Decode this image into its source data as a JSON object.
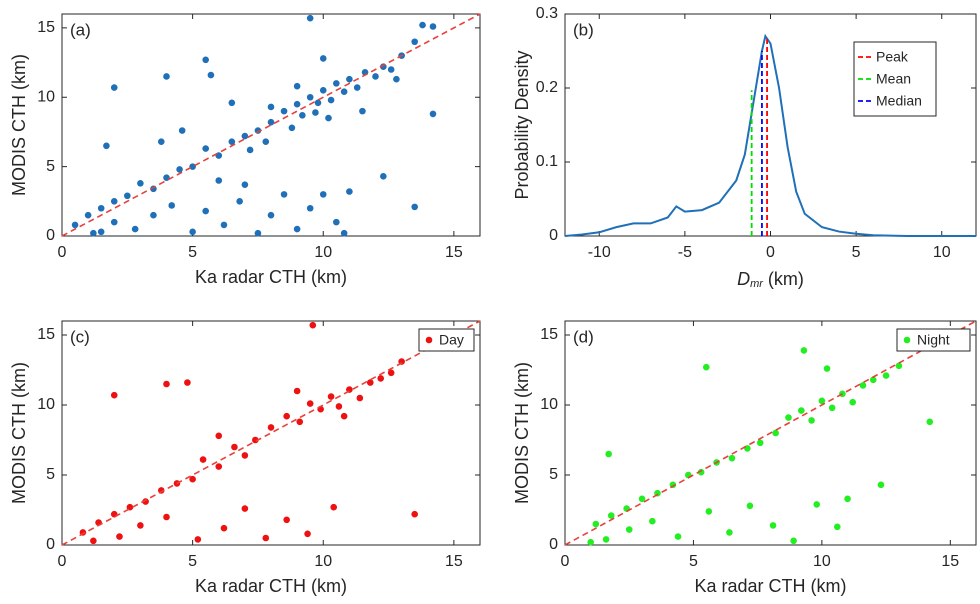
{
  "chart_data": [
    {
      "type": "scatter",
      "label": "(a)",
      "xlabel": "Ka radar CTH (km)",
      "ylabel": "MODIS CTH (km)",
      "xlim": [
        0,
        16
      ],
      "ylim": [
        0,
        16
      ],
      "xticks": [
        0,
        5,
        10,
        15
      ],
      "yticks": [
        0,
        5,
        10,
        15
      ],
      "diagonal_color": "#e8413b",
      "series": [
        {
          "color": "#1f70b8",
          "x": [
            8,
            8.5,
            9,
            9.2,
            9.5,
            9.8,
            10,
            10.3,
            10.5,
            10.8,
            11,
            11.3,
            11.6,
            12,
            12.3,
            12.6,
            13,
            13.5,
            13.8,
            14.2,
            9.5,
            8.8,
            9.7,
            10.2,
            7.5,
            7,
            7.2,
            6.5,
            6,
            5.5,
            5,
            4.5,
            4,
            3.5,
            3,
            2.5,
            2,
            1.5,
            1,
            0.5,
            1.2,
            1.5,
            2,
            2.8,
            3.5,
            4.2,
            5,
            5.5,
            6.2,
            6.8,
            7.5,
            8,
            8.5,
            9,
            9.5,
            10,
            10.5,
            10.8,
            11,
            7,
            6,
            4,
            5.5,
            5.7,
            2,
            1.7,
            4.6,
            3.8,
            6.5,
            14.2,
            13.5,
            12.3,
            10,
            11.5,
            9,
            8,
            7.8,
            12.8
          ],
          "y": [
            8.2,
            9,
            9.5,
            8.7,
            10,
            9.6,
            10.5,
            9.8,
            11,
            10.4,
            11.3,
            10.7,
            11.8,
            11.5,
            12.2,
            12,
            13,
            14,
            15.2,
            15.1,
            15.7,
            7.8,
            8.9,
            8.5,
            7.6,
            7.2,
            6.2,
            6.8,
            5.8,
            6.3,
            5,
            4.8,
            4.2,
            3.4,
            3.8,
            2.9,
            2.5,
            2,
            1.5,
            0.8,
            0.2,
            0.3,
            1,
            0.5,
            1.5,
            2.2,
            0.3,
            1.8,
            0.8,
            2.5,
            0.2,
            1.5,
            3,
            0.5,
            2,
            3,
            1,
            0.2,
            3.2,
            3.7,
            4,
            11.5,
            12.7,
            11.6,
            10.7,
            6.5,
            7.6,
            6.8,
            9.6,
            8.8,
            2.1,
            4.3,
            12.8,
            9,
            10.8,
            9.3,
            6.8,
            11.3
          ]
        }
      ]
    },
    {
      "type": "density",
      "label": "(b)",
      "xlabel_symbol": "D",
      "xlabel_subscript": "mr",
      "xlabel_unit": "(km)",
      "ylabel": "Probability Density",
      "xlim": [
        -12,
        12
      ],
      "ylim": [
        0,
        0.3
      ],
      "xticks": [
        -10,
        -5,
        0,
        5,
        10
      ],
      "yticks": [
        0,
        0.1,
        0.2,
        0.3
      ],
      "color": "#1f70b8",
      "x": [
        -12,
        -11,
        -10,
        -9,
        -8,
        -7,
        -6,
        -5.5,
        -5,
        -4,
        -3,
        -2,
        -1.5,
        -1,
        -0.5,
        -0.3,
        0,
        0.5,
        1,
        1.5,
        2,
        3,
        4,
        5,
        6,
        8,
        10,
        12
      ],
      "values": [
        0,
        0.002,
        0.005,
        0.012,
        0.017,
        0.017,
        0.025,
        0.04,
        0.033,
        0.035,
        0.045,
        0.075,
        0.11,
        0.18,
        0.25,
        0.27,
        0.26,
        0.2,
        0.12,
        0.06,
        0.03,
        0.012,
        0.006,
        0.003,
        0.001,
        0,
        0,
        0
      ],
      "legend": "upper right",
      "lines": [
        {
          "name": "Peak",
          "color": "#ff0000",
          "x": -0.2,
          "y": 0.27
        },
        {
          "name": "Mean",
          "color": "#00dd00",
          "x": -1.1,
          "y": 0.197
        },
        {
          "name": "Median",
          "color": "#0000ff",
          "x": -0.5,
          "y": 0.25
        }
      ]
    },
    {
      "type": "scatter",
      "label": "(c)",
      "xlabel": "Ka radar CTH (km)",
      "ylabel": "MODIS CTH (km)",
      "xlim": [
        0,
        16
      ],
      "ylim": [
        0,
        16
      ],
      "xticks": [
        0,
        5,
        10,
        15
      ],
      "yticks": [
        0,
        5,
        10,
        15
      ],
      "diagonal_color": "#e8413b",
      "legend": "upper right",
      "series": [
        {
          "name": "Day",
          "color": "#ee1111",
          "x": [
            8,
            8.6,
            9.1,
            9.5,
            9.9,
            10.3,
            10.6,
            11,
            11.4,
            11.8,
            12.2,
            12.6,
            13,
            9.6,
            7.4,
            7,
            6.6,
            6,
            5.4,
            5,
            4.4,
            3.8,
            3.2,
            2.6,
            2,
            1.4,
            0.8,
            1.2,
            2.2,
            3,
            4,
            5.2,
            6.2,
            7,
            7.8,
            8.6,
            9.4,
            10.4,
            13.5,
            2,
            4,
            4.8,
            6,
            9,
            10.8
          ],
          "y": [
            8.4,
            9.2,
            8.8,
            10.1,
            9.7,
            10.6,
            9.9,
            11.1,
            10.5,
            11.6,
            11.9,
            12.3,
            13.1,
            15.7,
            7.5,
            6.4,
            7,
            5.6,
            6.1,
            4.7,
            4.4,
            3.9,
            3.1,
            2.7,
            2.2,
            1.6,
            0.9,
            0.3,
            0.6,
            1.4,
            2,
            0.4,
            1.2,
            2.6,
            0.5,
            1.8,
            0.8,
            2.7,
            2.2,
            10.7,
            11.5,
            11.6,
            7.8,
            11,
            9.2
          ]
        }
      ]
    },
    {
      "type": "scatter",
      "label": "(d)",
      "xlabel": "Ka radar CTH (km)",
      "ylabel": "MODIS CTH (km)",
      "xlim": [
        0,
        16
      ],
      "ylim": [
        0,
        16
      ],
      "xticks": [
        0,
        5,
        10,
        15
      ],
      "yticks": [
        0,
        5,
        10,
        15
      ],
      "diagonal_color": "#e8413b",
      "legend": "upper right",
      "series": [
        {
          "name": "Night",
          "color": "#22ee22",
          "x": [
            8.2,
            8.7,
            9.2,
            9.6,
            10,
            10.4,
            10.8,
            11.2,
            11.6,
            12,
            12.5,
            13,
            13.8,
            15.5,
            7.6,
            7.1,
            6.5,
            5.9,
            5.3,
            4.8,
            4.2,
            3.6,
            3,
            2.4,
            1.8,
            1.2,
            1,
            1.6,
            2.5,
            3.4,
            4.4,
            5.6,
            6.4,
            7.2,
            8.1,
            8.9,
            9.8,
            10.6,
            11,
            14.2,
            12.3,
            5.5,
            1.7,
            9.3,
            10.2
          ],
          "y": [
            8,
            9.1,
            9.6,
            8.9,
            10.3,
            9.8,
            10.8,
            10.2,
            11.4,
            11.8,
            12.1,
            12.8,
            14.6,
            15.3,
            7.3,
            6.9,
            6.2,
            5.9,
            5.2,
            5,
            4.3,
            3.7,
            3.3,
            2.6,
            2.1,
            1.5,
            0.2,
            0.4,
            1.1,
            1.7,
            0.6,
            2.4,
            0.9,
            2.8,
            1.4,
            0.3,
            2.9,
            1.3,
            3.3,
            8.8,
            4.3,
            12.7,
            6.5,
            13.9,
            12.6
          ]
        }
      ]
    }
  ]
}
